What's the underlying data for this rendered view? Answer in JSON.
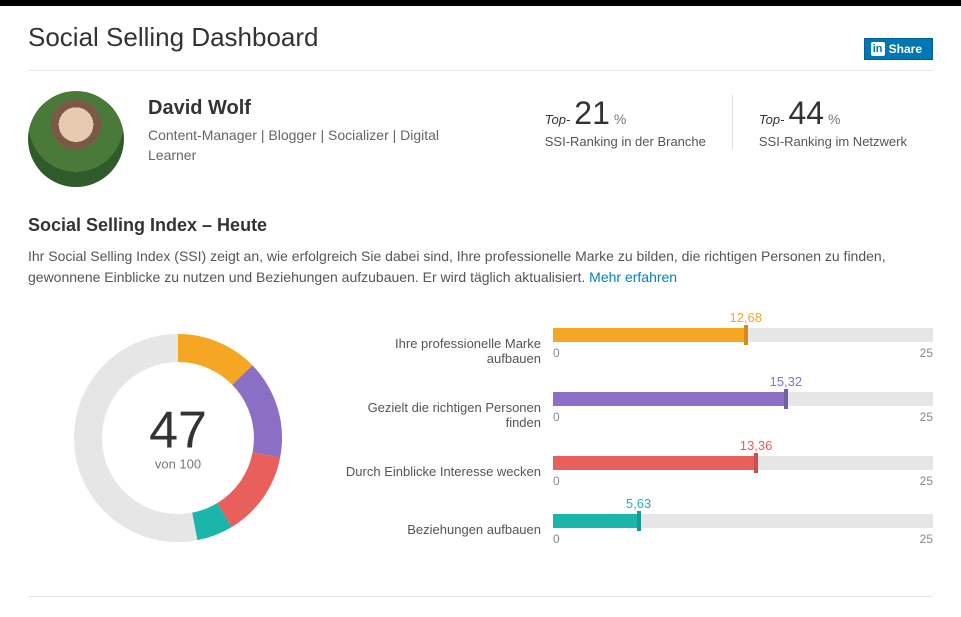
{
  "page_title": "Social Selling Dashboard",
  "share_label": "Share",
  "profile": {
    "name": "David Wolf",
    "subtitle": "Content-Manager | Blogger | Socializer | Digital Learner"
  },
  "rankings": [
    {
      "prefix": "Top-",
      "value": "21",
      "pct": "%",
      "label": "SSI-Ranking in der Branche"
    },
    {
      "prefix": "Top-",
      "value": "44",
      "pct": "%",
      "label": "SSI-Ranking im Netzwerk"
    }
  ],
  "ssi_section": {
    "title": "Social Selling Index – Heute",
    "description": "Ihr Social Selling Index (SSI) zeigt an, wie erfolgreich Sie dabei sind, Ihre professionelle Marke zu bilden, die richtigen Personen zu finden, gewonnene Einblicke zu nutzen und Beziehungen aufzubauen. Er wird täglich aktualisiert. ",
    "learn_more": "Mehr erfahren"
  },
  "donut": {
    "score": "47",
    "sub": "von 100",
    "max": 100,
    "track_color": "#e6e6e6",
    "stroke_width": 28,
    "radius": 90
  },
  "metrics": [
    {
      "label": "Ihre professionelle Marke aufbauen",
      "value": 12.68,
      "display": "12,68",
      "color": "#f5a623",
      "max": 25
    },
    {
      "label": "Gezielt die richtigen Personen finden",
      "value": 15.32,
      "display": "15,32",
      "color": "#8b6fc4",
      "max": 25
    },
    {
      "label": "Durch Einblicke Interesse wecken",
      "value": 13.36,
      "display": "13,36",
      "color": "#e95f5c",
      "max": 25
    },
    {
      "label": "Beziehungen aufbauen",
      "value": 5.63,
      "display": "5,63",
      "color": "#1cb5ac",
      "max": 25
    }
  ],
  "axis": {
    "min": "0",
    "max": "25"
  },
  "colors": {
    "link": "#0084bf",
    "text": "#333333",
    "muted": "#777777",
    "track": "#e6e6e6"
  }
}
